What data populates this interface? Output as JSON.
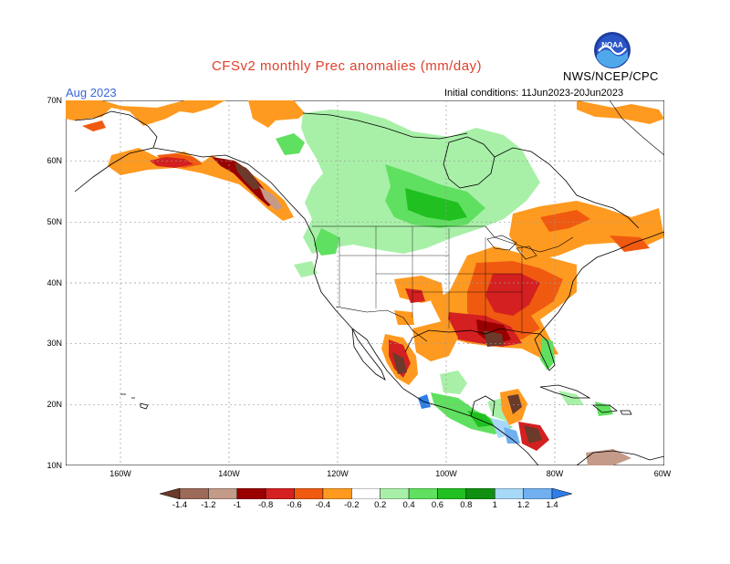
{
  "title": "CFSv2 monthly Prec anomalies (mm/day)",
  "target_month": "Aug 2023",
  "initial_conditions": "Initial conditions: 11Jun2023-20Jun2023",
  "organization": "NWS/NCEP/CPC",
  "logo": {
    "icon": "noaa-logo-icon",
    "text": "NOAA"
  },
  "lat_labels": [
    "70N",
    "60N",
    "50N",
    "40N",
    "30N",
    "20N",
    "10N"
  ],
  "lon_labels": [
    "160W",
    "140W",
    "120W",
    "100W",
    "80W",
    "60W"
  ],
  "colorbar": {
    "labels": [
      "-1.4",
      "-1.2",
      "-1",
      "-0.8",
      "-0.6",
      "-0.4",
      "-0.2",
      "0.2",
      "0.4",
      "0.6",
      "0.8",
      "1",
      "1.2",
      "1.4"
    ],
    "colors": [
      "#6b3a2a",
      "#9c6a58",
      "#c49a88",
      "#9a0000",
      "#d42020",
      "#f05a10",
      "#ff9a20",
      "#ffffff",
      "#a8f0a8",
      "#60e060",
      "#20c020",
      "#109010",
      "#a8d8f8",
      "#70b0f0",
      "#2e7de8"
    ]
  },
  "map_colors": {
    "ocean": "#ffffff",
    "land_outline": "#000000",
    "grid": "#9a9a9a"
  }
}
